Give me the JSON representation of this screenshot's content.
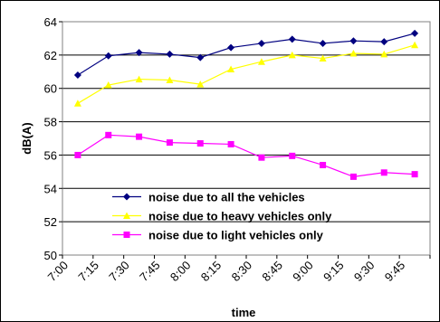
{
  "chart_data": {
    "type": "line",
    "title": "",
    "xlabel": "time",
    "ylabel": "dB(A)",
    "ylim": [
      50,
      64
    ],
    "yticks": [
      50,
      52,
      54,
      56,
      58,
      60,
      62,
      64
    ],
    "xtick_labels": [
      "7:00",
      "7:15",
      "7:30",
      "7:45",
      "8:00",
      "8:15",
      "8:30",
      "8:45",
      "9:00",
      "9:15",
      "9:30",
      "9:45"
    ],
    "x": [
      "7:07",
      "7:22",
      "7:37",
      "7:52",
      "8:07",
      "8:22",
      "8:37",
      "8:52",
      "9:07",
      "9:22",
      "9:37",
      "9:52"
    ],
    "grid": "horizontal",
    "legend_position": "bottom-center inside plot",
    "series": [
      {
        "name": "noise due to all the vehicles",
        "color": "#000080",
        "marker": "diamond",
        "values": [
          60.8,
          61.95,
          62.15,
          62.05,
          61.85,
          62.45,
          62.7,
          62.95,
          62.7,
          62.85,
          62.8,
          63.3
        ]
      },
      {
        "name": "noise due to heavy vehicles only",
        "color": "#ffff00",
        "marker": "triangle",
        "values": [
          59.1,
          60.2,
          60.55,
          60.5,
          60.25,
          61.15,
          61.6,
          62.0,
          61.8,
          62.1,
          62.05,
          62.6
        ]
      },
      {
        "name": "noise due to light vehicles only",
        "color": "#ff00ff",
        "marker": "square",
        "values": [
          56.0,
          57.2,
          57.1,
          56.75,
          56.7,
          56.65,
          55.85,
          55.95,
          55.4,
          54.7,
          54.95,
          54.85
        ]
      }
    ]
  }
}
